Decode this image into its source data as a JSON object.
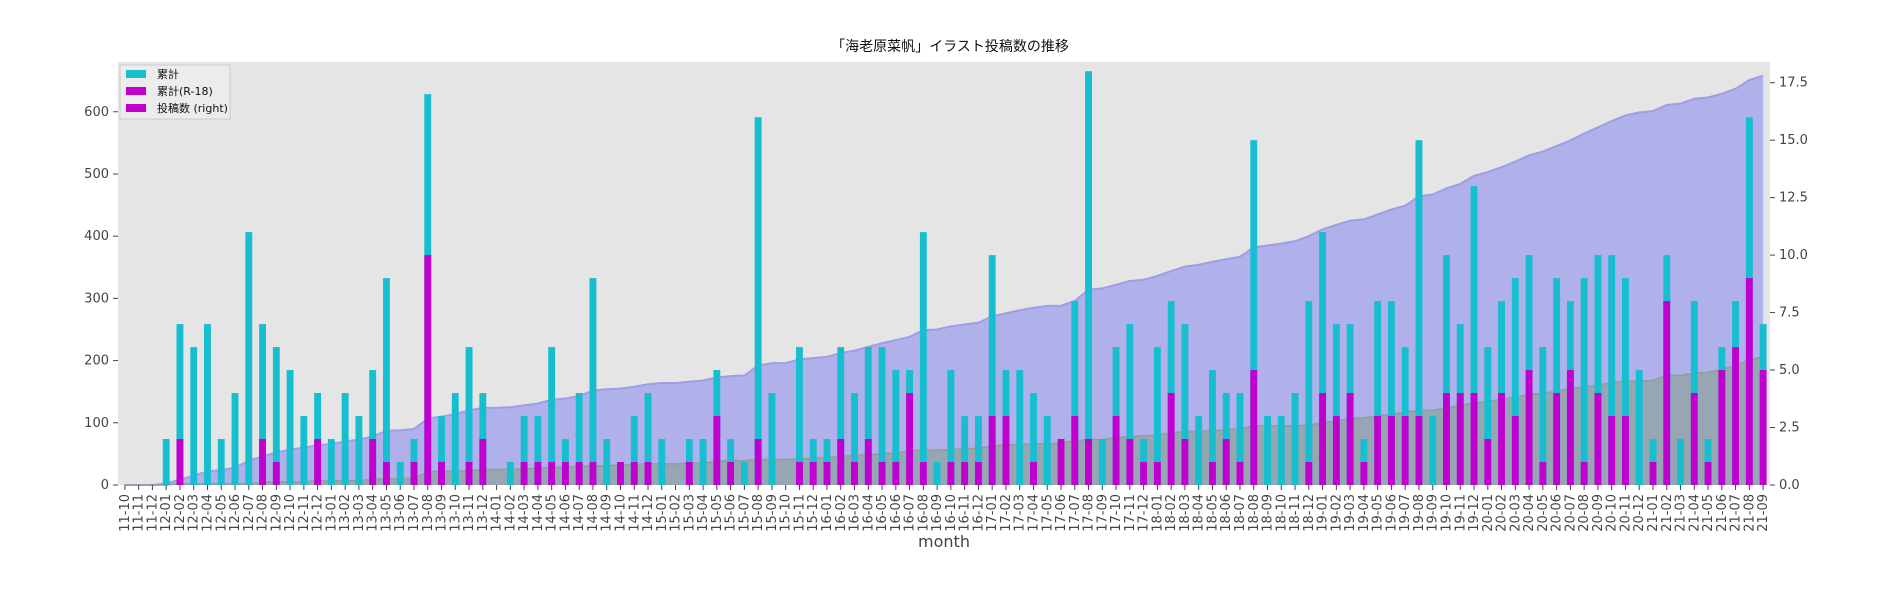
{
  "chart_data": {
    "type": "bar",
    "title": "「海老原菜帆」イラスト投稿数の推移",
    "xlabel": "month",
    "ylabel_left": "",
    "ylabel_right": "",
    "ylim_left": [
      0,
      680
    ],
    "ylim_right": [
      0,
      18.4
    ],
    "yticks_left": [
      0,
      100,
      200,
      300,
      400,
      500,
      600
    ],
    "yticks_right": [
      "0.0",
      "2.5",
      "5.0",
      "7.5",
      "10.0",
      "12.5",
      "15.0",
      "17.5"
    ],
    "grid": false,
    "legend_position": "top-left",
    "legend": [
      "累計",
      "累計(R-18)",
      "投稿数 (right)"
    ],
    "colors": {
      "plot_background": "#e5e5e5",
      "posts_bar": "#17becf",
      "r18_bar": "#bf00cf",
      "cumulative_area": "#b0b0ea",
      "cumulative_line": "#9e9ee6",
      "r18_area": "#8fa3a0",
      "r18_line": "#8e9e9a"
    },
    "categories": [
      "11-10",
      "11-11",
      "11-12",
      "12-01",
      "12-02",
      "12-03",
      "12-04",
      "12-05",
      "12-06",
      "12-07",
      "12-08",
      "12-09",
      "12-10",
      "12-11",
      "12-12",
      "13-01",
      "13-02",
      "13-03",
      "13-04",
      "13-05",
      "13-06",
      "13-07",
      "13-08",
      "13-09",
      "13-10",
      "13-11",
      "13-12",
      "14-01",
      "14-02",
      "14-03",
      "14-04",
      "14-05",
      "14-06",
      "14-07",
      "14-08",
      "14-09",
      "14-10",
      "14-11",
      "14-12",
      "15-01",
      "15-02",
      "15-03",
      "15-04",
      "15-05",
      "15-06",
      "15-07",
      "15-08",
      "15-09",
      "15-10",
      "15-11",
      "15-12",
      "16-01",
      "16-02",
      "16-03",
      "16-04",
      "16-05",
      "16-06",
      "16-07",
      "16-08",
      "16-09",
      "16-10",
      "16-11",
      "16-12",
      "17-01",
      "17-02",
      "17-03",
      "17-04",
      "17-05",
      "17-06",
      "17-07",
      "17-08",
      "17-09",
      "17-10",
      "17-11",
      "17-12",
      "18-01",
      "18-02",
      "18-03",
      "18-04",
      "18-05",
      "18-06",
      "18-07",
      "18-08",
      "18-09",
      "18-10",
      "18-11",
      "18-12",
      "19-01",
      "19-02",
      "19-03",
      "19-04",
      "19-05",
      "19-06",
      "19-07",
      "19-08",
      "19-09",
      "19-10",
      "19-11",
      "19-12",
      "20-01",
      "20-02",
      "20-03",
      "20-04",
      "20-05",
      "20-06",
      "20-07",
      "20-08",
      "20-09",
      "20-10",
      "20-11",
      "20-12",
      "21-01",
      "21-02",
      "21-03",
      "21-04",
      "21-05",
      "21-06",
      "21-07",
      "21-08",
      "21-09"
    ],
    "series": [
      {
        "name": "累計",
        "kind": "area",
        "axis": "left",
        "values": [
          0,
          0,
          0,
          2,
          9,
          15,
          22,
          24,
          28,
          39,
          46,
          52,
          57,
          60,
          64,
          66,
          70,
          73,
          78,
          87,
          88,
          90,
          107,
          110,
          114,
          120,
          124,
          124,
          125,
          128,
          131,
          137,
          139,
          143,
          152,
          154,
          155,
          158,
          162,
          164,
          164,
          166,
          168,
          173,
          175,
          176,
          192,
          196,
          196,
          202,
          204,
          206,
          212,
          216,
          222,
          228,
          233,
          238,
          249,
          250,
          255,
          258,
          261,
          271,
          276,
          281,
          285,
          288,
          288,
          296,
          314,
          316,
          322,
          328,
          330,
          336,
          344,
          351,
          354,
          359,
          363,
          367,
          382,
          385,
          388,
          392,
          400,
          411,
          418,
          425,
          427,
          435,
          443,
          449,
          464,
          467,
          477,
          484,
          497,
          503,
          511,
          520,
          530,
          536,
          545,
          554,
          565,
          575,
          585,
          594,
          599,
          601,
          611,
          613,
          621,
          623,
          629,
          637,
          651,
          658
        ]
      },
      {
        "name": "累計(R-18)",
        "kind": "area",
        "axis": "left",
        "values": [
          0,
          0,
          0,
          0,
          2,
          2,
          2,
          2,
          2,
          2,
          4,
          5,
          5,
          5,
          7,
          7,
          7,
          7,
          9,
          10,
          10,
          11,
          21,
          22,
          22,
          23,
          25,
          25,
          25,
          26,
          27,
          28,
          29,
          30,
          31,
          31,
          32,
          33,
          34,
          34,
          34,
          35,
          35,
          38,
          39,
          39,
          41,
          41,
          41,
          42,
          43,
          44,
          46,
          47,
          49,
          50,
          51,
          55,
          56,
          56,
          57,
          58,
          59,
          62,
          65,
          65,
          66,
          66,
          68,
          71,
          73,
          73,
          76,
          78,
          79,
          80,
          84,
          86,
          86,
          87,
          89,
          90,
          95,
          95,
          95,
          95,
          96,
          100,
          103,
          107,
          108,
          111,
          114,
          117,
          120,
          120,
          124,
          128,
          132,
          134,
          138,
          141,
          146,
          147,
          151,
          156,
          157,
          161,
          164,
          167,
          167,
          168,
          176,
          176,
          180,
          181,
          186,
          192,
          201,
          206
        ]
      },
      {
        "name": "投稿数",
        "kind": "bar",
        "axis": "right",
        "values": [
          0,
          0,
          0,
          2,
          7,
          6,
          7,
          2,
          4,
          11,
          7,
          6,
          5,
          3,
          4,
          2,
          4,
          3,
          5,
          9,
          1,
          2,
          17,
          3,
          4,
          6,
          4,
          0,
          1,
          3,
          3,
          6,
          2,
          4,
          9,
          2,
          1,
          3,
          4,
          2,
          0,
          2,
          2,
          5,
          2,
          1,
          16,
          4,
          0,
          6,
          2,
          2,
          6,
          4,
          6,
          6,
          5,
          5,
          11,
          1,
          5,
          3,
          3,
          10,
          5,
          5,
          4,
          3,
          0,
          8,
          18,
          2,
          6,
          7,
          2,
          6,
          8,
          7,
          3,
          5,
          4,
          4,
          15,
          3,
          3,
          4,
          8,
          11,
          7,
          7,
          2,
          8,
          8,
          6,
          15,
          3,
          10,
          7,
          13,
          6,
          8,
          9,
          10,
          6,
          9,
          8,
          9,
          10,
          10,
          9,
          5,
          2,
          10,
          2,
          8,
          2,
          6,
          8,
          16,
          7
        ]
      },
      {
        "name": "R-18",
        "kind": "bar",
        "axis": "right",
        "values": [
          0,
          0,
          0,
          0,
          2,
          0,
          0,
          0,
          0,
          0,
          2,
          1,
          0,
          0,
          2,
          0,
          0,
          0,
          2,
          1,
          0,
          1,
          10,
          1,
          0,
          1,
          2,
          0,
          0,
          1,
          1,
          1,
          1,
          1,
          1,
          0,
          1,
          1,
          1,
          0,
          0,
          1,
          0,
          3,
          1,
          0,
          2,
          0,
          0,
          1,
          1,
          1,
          2,
          1,
          2,
          1,
          1,
          4,
          1,
          0,
          1,
          1,
          1,
          3,
          3,
          0,
          1,
          0,
          2,
          3,
          2,
          0,
          3,
          2,
          1,
          1,
          4,
          2,
          0,
          1,
          2,
          1,
          5,
          0,
          0,
          0,
          1,
          4,
          3,
          4,
          1,
          3,
          3,
          3,
          3,
          0,
          4,
          4,
          4,
          2,
          4,
          3,
          5,
          1,
          4,
          5,
          1,
          4,
          3,
          3,
          0,
          1,
          8,
          0,
          4,
          1,
          5,
          6,
          9,
          5
        ]
      }
    ]
  }
}
